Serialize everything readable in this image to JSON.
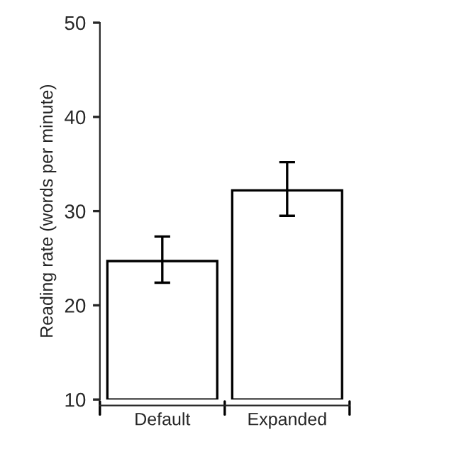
{
  "chart_data": {
    "type": "bar",
    "ylabel": "Reading rate (words per minute)",
    "categories": [
      "Default",
      "Expanded"
    ],
    "series": [
      {
        "color": "#ffffff",
        "values": [
          24.7,
          32.2
        ],
        "errors": [
          [
            22.4,
            27.3
          ],
          [
            29.5,
            35.2
          ]
        ]
      }
    ],
    "ylim": [
      10,
      50
    ],
    "yticks": [
      10,
      20,
      30,
      40,
      50
    ],
    "grid": false,
    "legend": false
  }
}
